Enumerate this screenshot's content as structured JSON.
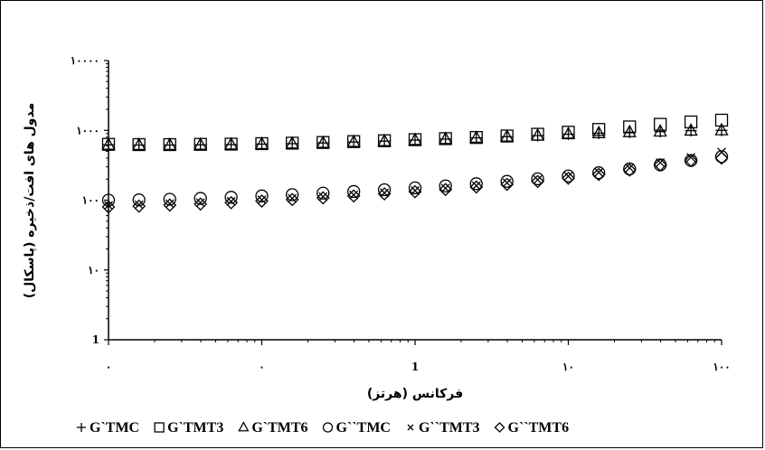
{
  "chart_data": {
    "type": "scatter",
    "xlabel": "فرکانس (هرتز)",
    "ylabel": "مدول های افت/ذخیره (پاسکال)",
    "x_scale": "log",
    "y_scale": "log",
    "xlim": [
      0.01,
      100
    ],
    "ylim": [
      1,
      10000
    ],
    "x_ticks": [
      {
        "value": 0.01,
        "label": "۰"
      },
      {
        "value": 0.1,
        "label": "۰"
      },
      {
        "value": 1,
        "label": "1"
      },
      {
        "value": 10,
        "label": "۱۰"
      },
      {
        "value": 100,
        "label": "۱۰۰"
      }
    ],
    "y_ticks": [
      {
        "value": 1,
        "label": "1"
      },
      {
        "value": 10,
        "label": "۱۰"
      },
      {
        "value": 100,
        "label": "۱۰۰"
      },
      {
        "value": 1000,
        "label": "۱۰۰۰"
      },
      {
        "value": 10000,
        "label": "۱۰۰۰۰"
      }
    ],
    "grid": false,
    "legend_position": "bottom",
    "x": [
      0.01,
      0.0158,
      0.0251,
      0.0398,
      0.0631,
      0.1,
      0.158,
      0.251,
      0.398,
      0.631,
      1,
      1.58,
      2.51,
      3.98,
      6.31,
      10,
      15.8,
      25.1,
      39.8,
      63.1,
      100
    ],
    "series": [
      {
        "name": "G`TMC",
        "marker": "plus",
        "values": [
          620,
          615,
          615,
          620,
          625,
          635,
          645,
          660,
          680,
          700,
          725,
          750,
          780,
          810,
          840,
          880,
          910,
          940,
          960,
          990,
          1000
        ]
      },
      {
        "name": "G`TMT3",
        "marker": "square",
        "values": [
          630,
          625,
          625,
          630,
          635,
          645,
          655,
          670,
          690,
          710,
          735,
          760,
          790,
          830,
          880,
          940,
          1030,
          1120,
          1220,
          1320,
          1400
        ]
      },
      {
        "name": "G`TMT6",
        "marker": "triangle",
        "values": [
          620,
          615,
          615,
          620,
          625,
          635,
          645,
          660,
          680,
          700,
          725,
          750,
          780,
          810,
          840,
          880,
          910,
          940,
          960,
          990,
          1000
        ]
      },
      {
        "name": "G``TMC",
        "marker": "circle",
        "values": [
          100,
          101,
          103,
          106,
          110,
          115,
          120,
          126,
          133,
          141,
          150,
          160,
          172,
          186,
          202,
          222,
          247,
          280,
          320,
          370,
          420
        ]
      },
      {
        "name": "G``TMT3",
        "marker": "cross",
        "values": [
          84,
          86,
          89,
          92,
          96,
          101,
          106,
          112,
          119,
          127,
          137,
          148,
          161,
          177,
          196,
          220,
          250,
          290,
          345,
          410,
          490
        ]
      },
      {
        "name": "G``TMT6",
        "marker": "diamond",
        "values": [
          80,
          82,
          85,
          88,
          92,
          97,
          102,
          108,
          115,
          123,
          132,
          142,
          154,
          168,
          185,
          206,
          233,
          270,
          320,
          370,
          400
        ]
      }
    ]
  }
}
